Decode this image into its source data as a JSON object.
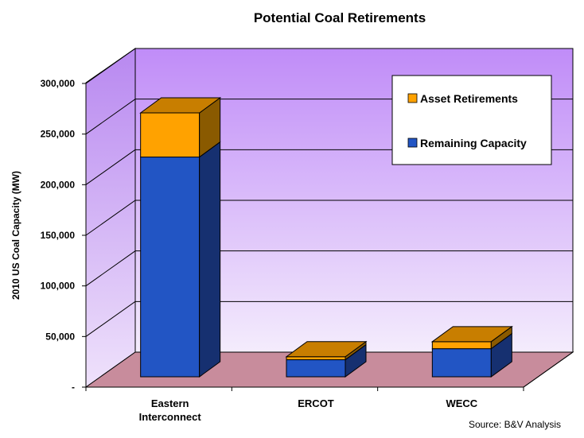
{
  "chart_data": {
    "type": "bar",
    "stacked": true,
    "three_d": true,
    "title": "Potential Coal Retirements",
    "ylabel": "2010 US Coal Capacity (MW)",
    "xlabel": "",
    "categories": [
      [
        "Eastern",
        "Interconnect"
      ],
      [
        "ERCOT"
      ],
      [
        "WECC"
      ]
    ],
    "series": [
      {
        "name": "Remaining Capacity",
        "values": [
          219000,
          17000,
          28000
        ],
        "color": "#2255c4"
      },
      {
        "name": "Asset Retirements",
        "values": [
          44000,
          3000,
          7000
        ],
        "color": "#ffa200"
      }
    ],
    "ylim": [
      0,
      300000
    ],
    "yticks": [
      {
        "value": 0,
        "label": "-"
      },
      {
        "value": 50000,
        "label": "50,000"
      },
      {
        "value": 100000,
        "label": "100,000"
      },
      {
        "value": 150000,
        "label": "150,000"
      },
      {
        "value": 200000,
        "label": "200,000"
      },
      {
        "value": 250000,
        "label": "250,000"
      },
      {
        "value": 300000,
        "label": "300,000"
      }
    ],
    "grid": true,
    "legend_position": "top-right",
    "source": "Source: B&V Analysis",
    "colors": {
      "wall_top": "#c08cf8",
      "wall_bottom": "#f4ecfc",
      "side_wall": "#c49af0",
      "floor": "#c88c9c",
      "remaining_side": "#163070",
      "remaining_top": "#5577dd",
      "retire_side": "#8a5a00",
      "retire_top": "#c87e00"
    }
  }
}
